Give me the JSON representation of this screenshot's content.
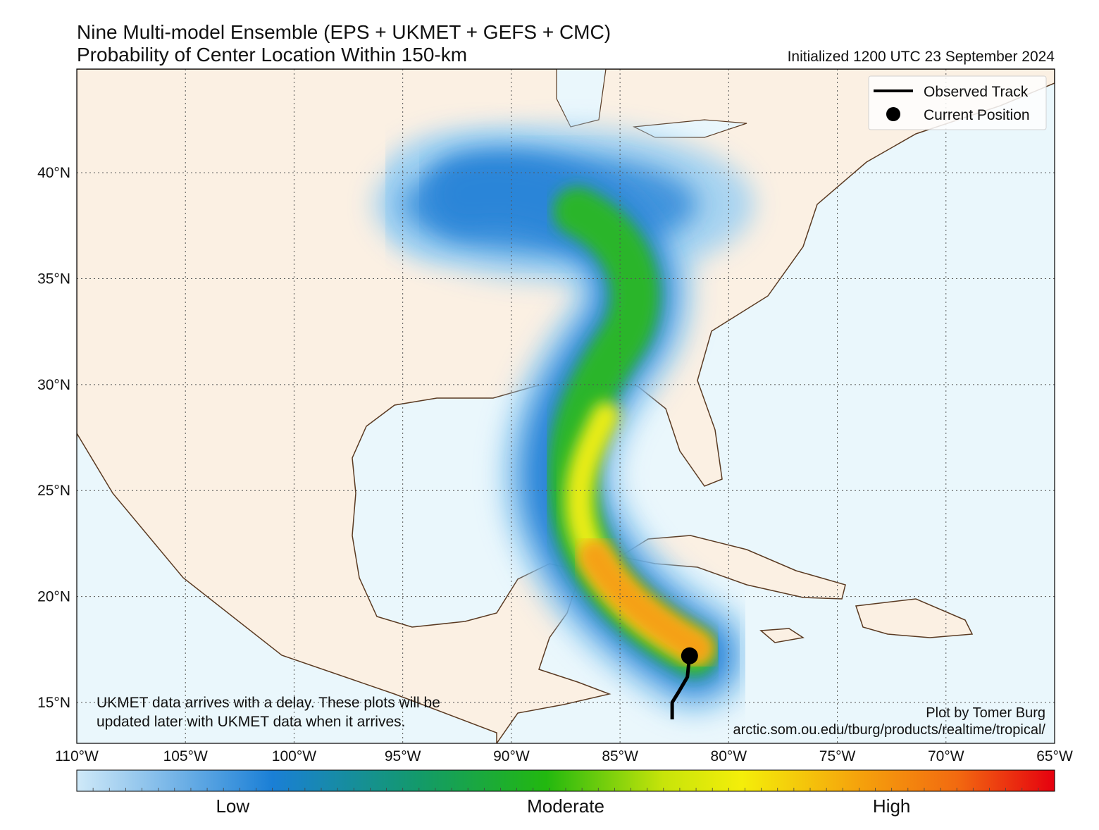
{
  "header": {
    "title_line1": "Nine Multi-model Ensemble (EPS + UKMET + GEFS + CMC)",
    "title_line2": "Probability of Center Location Within 150-km",
    "initialized": "Initialized 1200 UTC 23 September 2024"
  },
  "map": {
    "lonlim": [
      -110,
      -65
    ],
    "latlim": [
      13.07,
      44.89
    ],
    "lon_ticks": [
      {
        "value": -110,
        "label": "110°W"
      },
      {
        "value": -105,
        "label": "105°W"
      },
      {
        "value": -100,
        "label": "100°W"
      },
      {
        "value": -95,
        "label": "95°W"
      },
      {
        "value": -90,
        "label": "90°W"
      },
      {
        "value": -85,
        "label": "85°W"
      },
      {
        "value": -80,
        "label": "80°W"
      },
      {
        "value": -75,
        "label": "75°W"
      },
      {
        "value": -70,
        "label": "70°W"
      },
      {
        "value": -65,
        "label": "65°W"
      }
    ],
    "lat_ticks": [
      {
        "value": 15,
        "label": "15°N"
      },
      {
        "value": 20,
        "label": "20°N"
      },
      {
        "value": 25,
        "label": "25°N"
      },
      {
        "value": 30,
        "label": "30°N"
      },
      {
        "value": 35,
        "label": "35°N"
      },
      {
        "value": 40,
        "label": "40°N"
      }
    ],
    "track": {
      "lon": [
        -82.6,
        -82.6,
        -82.3,
        -81.9,
        -81.8
      ],
      "lat": [
        14.2,
        15.0,
        15.5,
        16.2,
        17.2
      ]
    },
    "current_position": {
      "lon": -81.8,
      "lat": 17.2
    }
  },
  "legend": {
    "observed_track": "Observed Track",
    "current_position": "Current Position"
  },
  "annotations": {
    "note_line1": "UKMET data arrives with a delay. These plots will be",
    "note_line2": "updated later with UKMET data when it arrives.",
    "credit": "Plot by Tomer Burg",
    "url": "arctic.som.ou.edu/tburg/products/realtime/tropical/"
  },
  "colorbar": {
    "labels": [
      "Low",
      "Moderate",
      "High"
    ]
  }
}
